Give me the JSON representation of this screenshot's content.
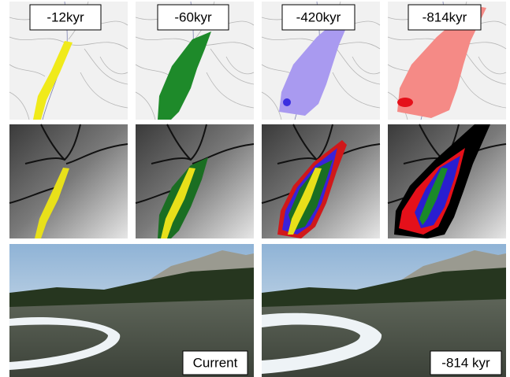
{
  "top_labels": [
    "-12kyr",
    "-60kyr",
    "-420kyr",
    "-814kyr"
  ],
  "bottom_labels": [
    "Current",
    "-814 kyr"
  ]
}
